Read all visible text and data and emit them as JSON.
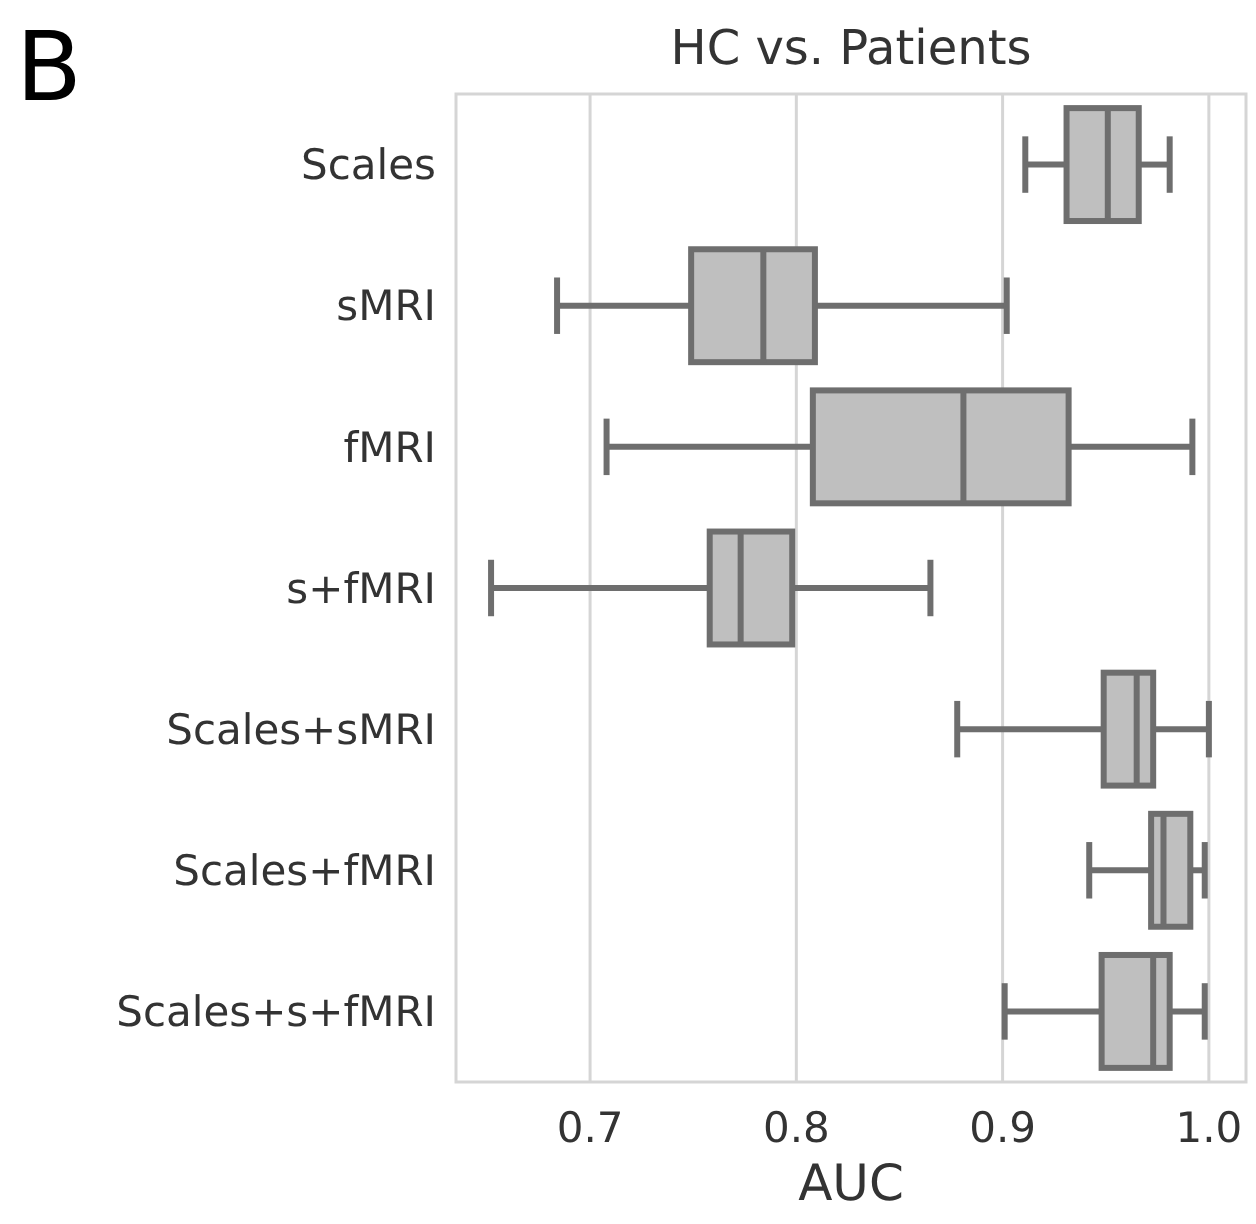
{
  "chart_data": {
    "type": "box",
    "title": "HC vs. Patients",
    "xlabel": "AUC",
    "orientation": "horizontal",
    "annotations": [
      "B"
    ],
    "categories": [
      "Scales",
      "sMRI",
      "fMRI",
      "s+fMRI",
      "Scales+sMRI",
      "Scales+fMRI",
      "Scales+s+fMRI"
    ],
    "color": "#bfbfbf",
    "boxes": [
      {
        "low": 0.911,
        "q1": 0.931,
        "median": 0.951,
        "q3": 0.966,
        "high": 0.981
      },
      {
        "low": 0.684,
        "q1": 0.749,
        "median": 0.784,
        "q3": 0.809,
        "high": 0.902
      },
      {
        "low": 0.708,
        "q1": 0.808,
        "median": 0.881,
        "q3": 0.932,
        "high": 0.992
      },
      {
        "low": 0.652,
        "q1": 0.758,
        "median": 0.773,
        "q3": 0.798,
        "high": 0.865
      },
      {
        "low": 0.878,
        "q1": 0.949,
        "median": 0.965,
        "q3": 0.973,
        "high": 1.0
      },
      {
        "low": 0.942,
        "q1": 0.972,
        "median": 0.978,
        "q3": 0.991,
        "high": 0.998
      },
      {
        "low": 0.901,
        "q1": 0.948,
        "median": 0.973,
        "q3": 0.981,
        "high": 0.998
      }
    ],
    "xlim": [
      0.635,
      1.018
    ],
    "xticks": [
      0.7,
      0.8,
      0.9,
      {
        "value": 1.0,
        "label": "1.0"
      }
    ],
    "grid": "x"
  }
}
